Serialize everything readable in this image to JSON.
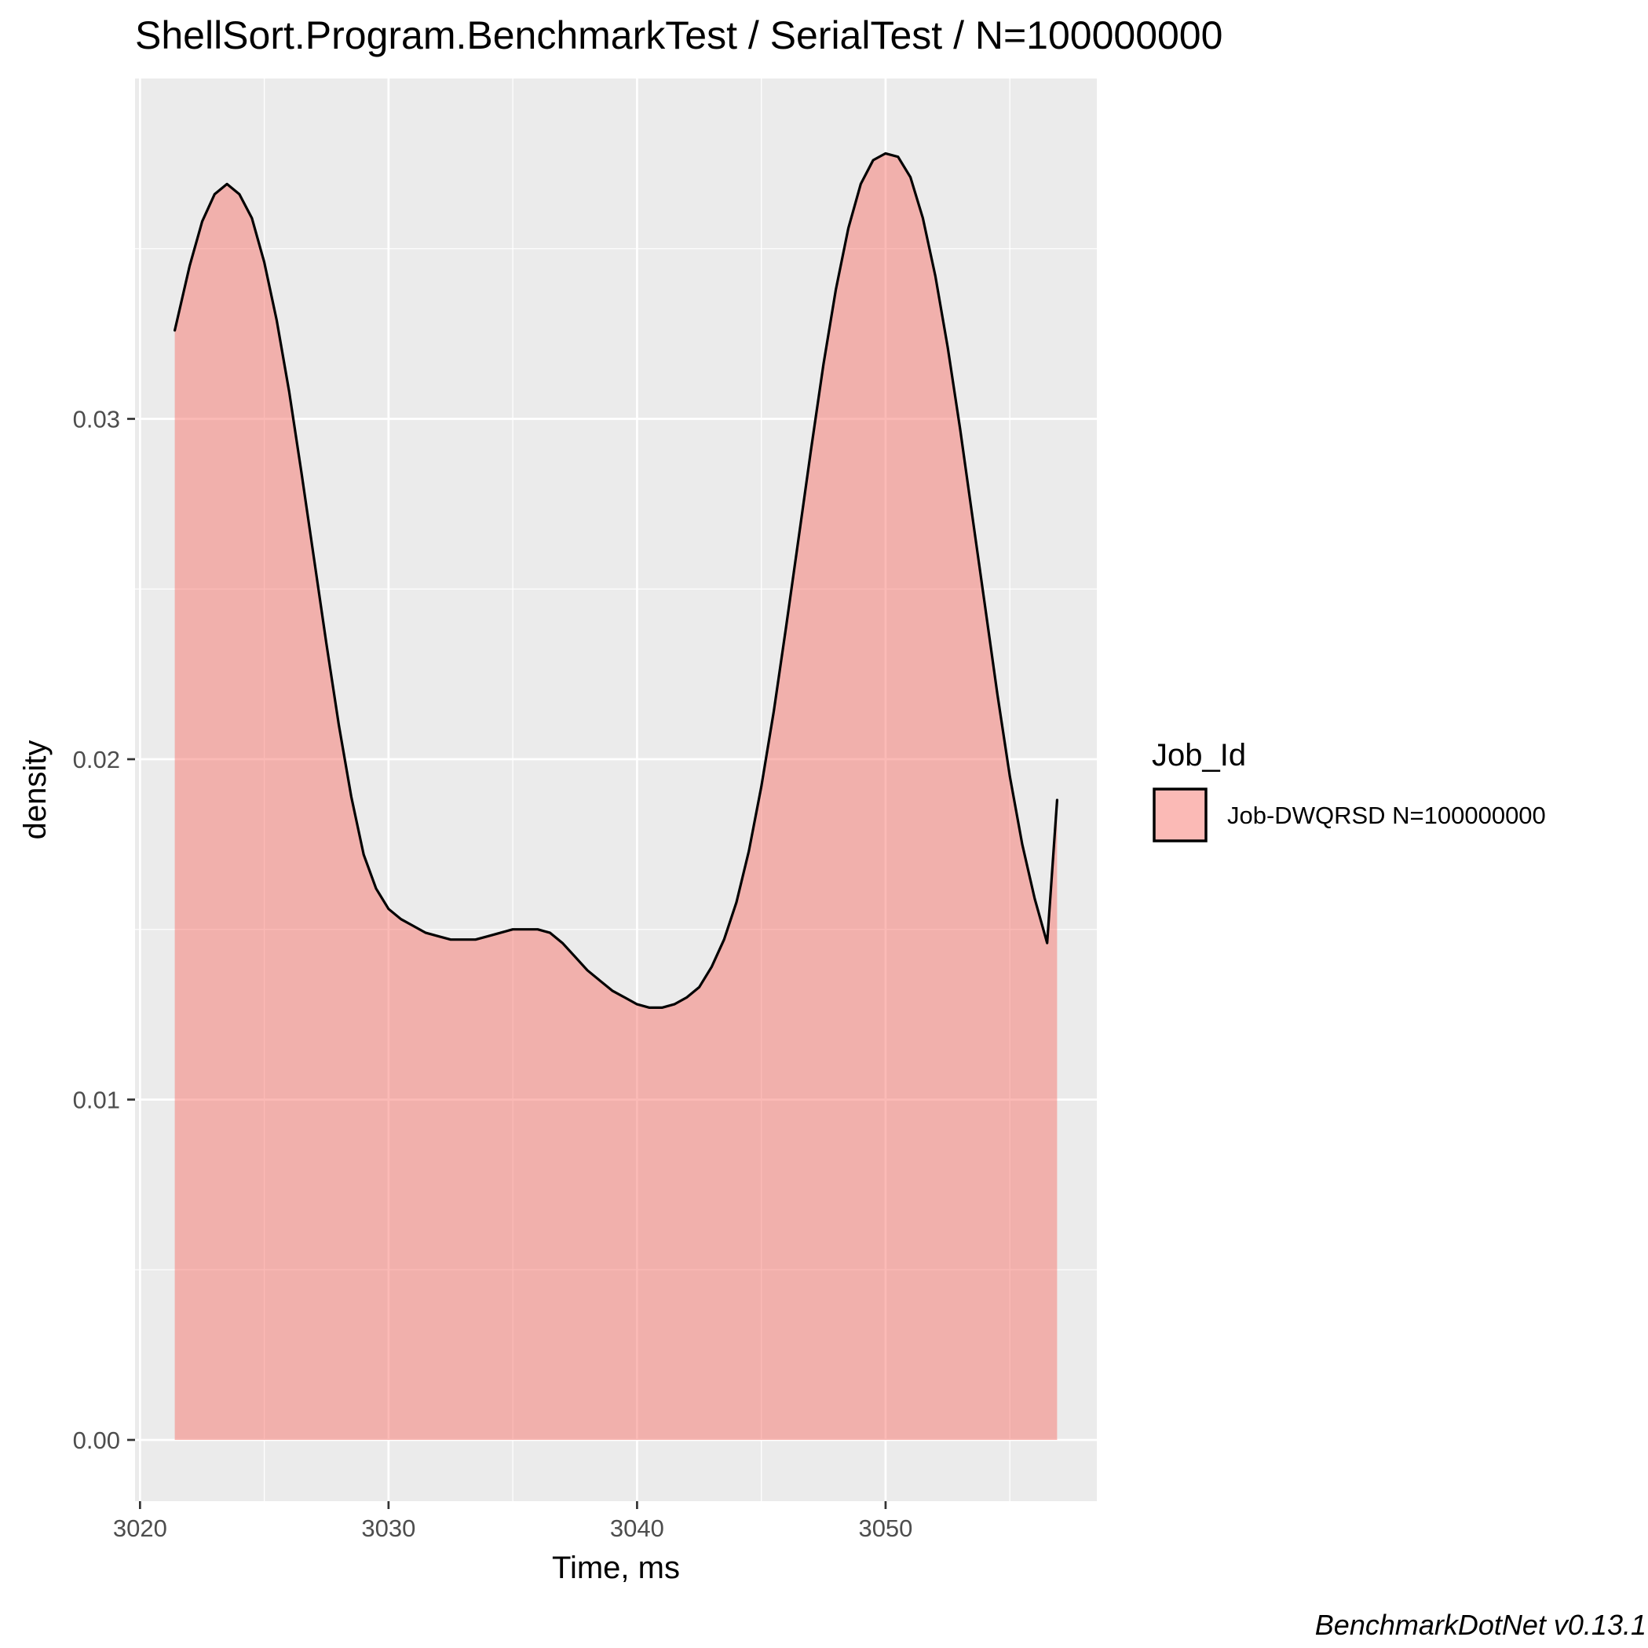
{
  "chart_data": {
    "type": "area",
    "title": "ShellSort.Program.BenchmarkTest / SerialTest / N=100000000",
    "xlabel": "Time, ms",
    "ylabel": "density",
    "caption": "BenchmarkDotNet v0.13.1",
    "xlim": [
      3019.8,
      3058.5
    ],
    "ylim": [
      -0.0018,
      0.04
    ],
    "x_ticks": [
      {
        "value": 3020,
        "label": "3020"
      },
      {
        "value": 3030,
        "label": "3030"
      },
      {
        "value": 3040,
        "label": "3040"
      },
      {
        "value": 3050,
        "label": "3050"
      }
    ],
    "y_ticks": [
      {
        "value": 0.0,
        "label": "0.00"
      },
      {
        "value": 0.01,
        "label": "0.01"
      },
      {
        "value": 0.02,
        "label": "0.02"
      },
      {
        "value": 0.03,
        "label": "0.03"
      }
    ],
    "grid": true,
    "legend": {
      "title": "Job_Id",
      "position": "right",
      "entries": [
        {
          "label": "Job-DWQRSD N=100000000",
          "color": "#f8766d"
        }
      ]
    },
    "series": [
      {
        "name": "Job-DWQRSD N=100000000",
        "color": "#f8766d",
        "x": [
          3021.4,
          3022.0,
          3022.5,
          3023.0,
          3023.5,
          3024.0,
          3024.5,
          3025.0,
          3025.5,
          3026.0,
          3026.5,
          3027.0,
          3027.5,
          3028.0,
          3028.5,
          3029.0,
          3029.5,
          3030.0,
          3030.5,
          3031.0,
          3031.5,
          3032.0,
          3032.5,
          3033.0,
          3033.5,
          3034.0,
          3034.5,
          3035.0,
          3035.5,
          3036.0,
          3036.5,
          3037.0,
          3037.5,
          3038.0,
          3038.5,
          3039.0,
          3039.5,
          3040.0,
          3040.5,
          3041.0,
          3041.5,
          3042.0,
          3042.5,
          3043.0,
          3043.5,
          3044.0,
          3044.5,
          3045.0,
          3045.5,
          3046.0,
          3046.5,
          3047.0,
          3047.5,
          3048.0,
          3048.5,
          3049.0,
          3049.5,
          3050.0,
          3050.5,
          3051.0,
          3051.5,
          3052.0,
          3052.5,
          3053.0,
          3053.5,
          3054.0,
          3054.5,
          3055.0,
          3055.5,
          3056.0,
          3056.5,
          3056.9
        ],
        "y": [
          0.0326,
          0.0345,
          0.0358,
          0.0366,
          0.0369,
          0.0366,
          0.0359,
          0.0346,
          0.0329,
          0.0308,
          0.0284,
          0.0259,
          0.0234,
          0.021,
          0.0189,
          0.0172,
          0.0162,
          0.0156,
          0.0153,
          0.0151,
          0.0149,
          0.0148,
          0.0147,
          0.0147,
          0.0147,
          0.0148,
          0.0149,
          0.015,
          0.015,
          0.015,
          0.0149,
          0.0146,
          0.0142,
          0.0138,
          0.0135,
          0.0132,
          0.013,
          0.0128,
          0.0127,
          0.0127,
          0.0128,
          0.013,
          0.0133,
          0.0139,
          0.0147,
          0.0158,
          0.0173,
          0.0192,
          0.0214,
          0.0239,
          0.0265,
          0.0291,
          0.0316,
          0.0338,
          0.0356,
          0.0369,
          0.0376,
          0.0378,
          0.0377,
          0.0371,
          0.0359,
          0.0342,
          0.0321,
          0.0297,
          0.0271,
          0.0245,
          0.0219,
          0.0195,
          0.0175,
          0.0159,
          0.0146,
          0.0188
        ]
      }
    ]
  }
}
